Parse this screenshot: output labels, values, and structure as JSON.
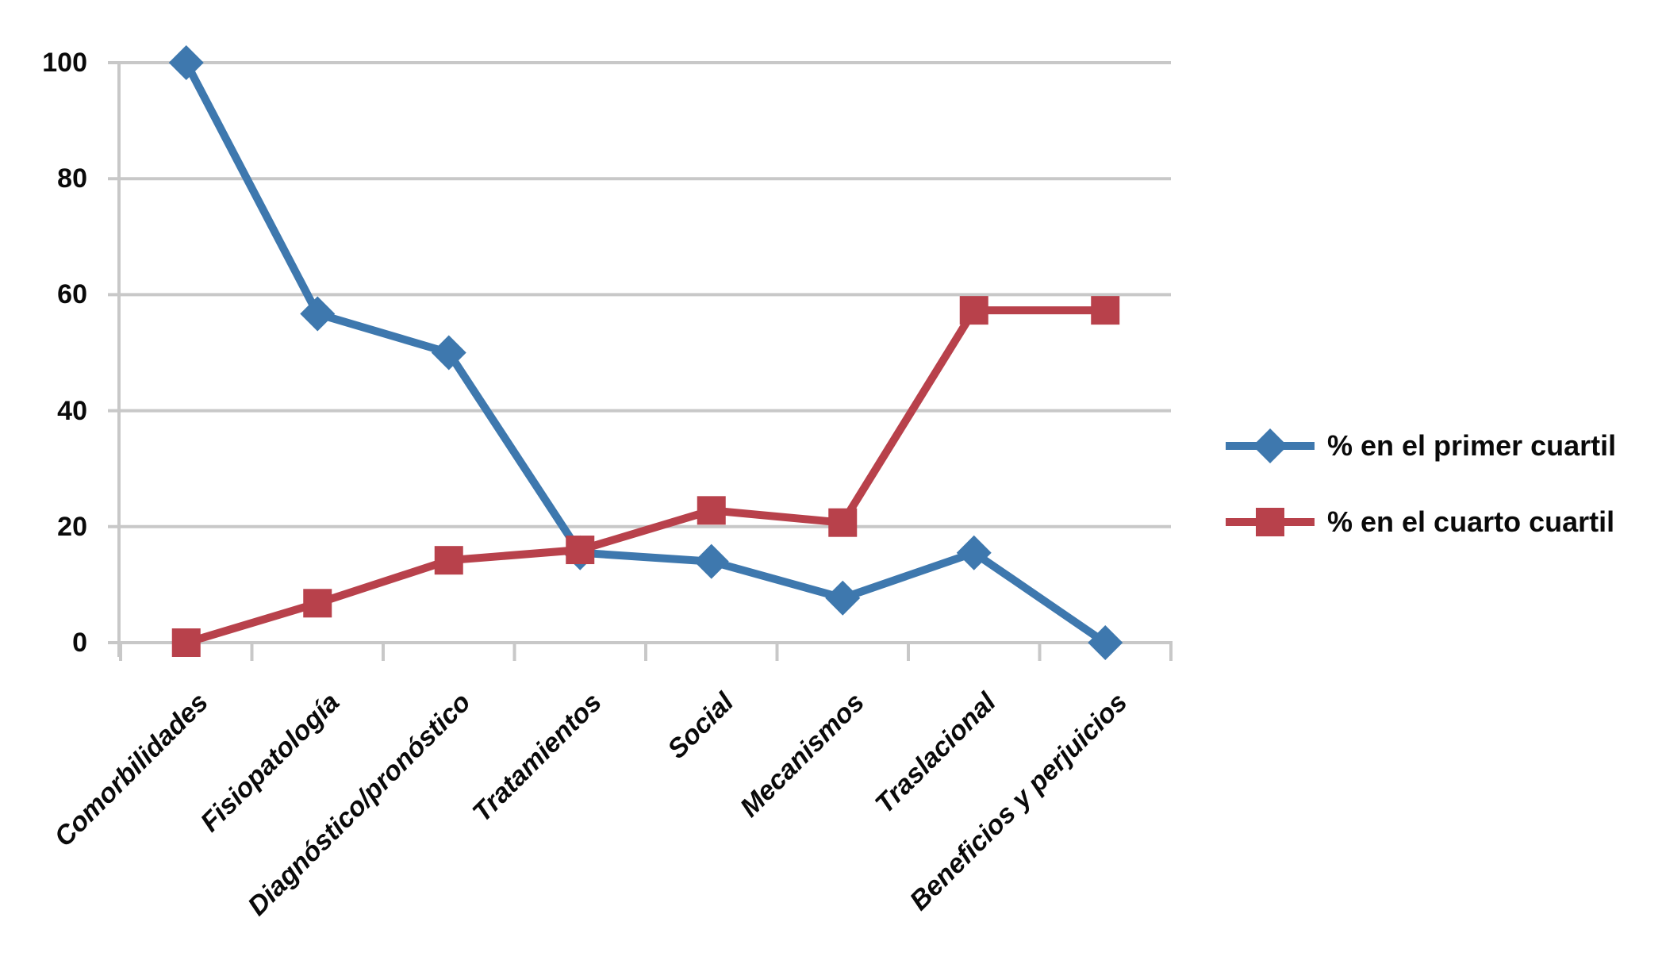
{
  "chart_data": {
    "type": "line",
    "title": "",
    "categories": [
      "Comorbilidades",
      "Fisiopatología",
      "Diagnóstico/pronóstico",
      "Tratamientos",
      "Social",
      "Mecanismos",
      "Traslacional",
      "Beneficios y perjuicios"
    ],
    "series": [
      {
        "name": "% en el primer cuartil",
        "marker": "diamond",
        "color": "#3E78AE",
        "values": [
          100,
          56.7,
          50,
          15.5,
          14,
          7.7,
          15.5,
          0
        ]
      },
      {
        "name": "% en el cuarto cuartil",
        "marker": "square",
        "color": "#B8414B",
        "values": [
          0,
          6.8,
          14.2,
          16,
          22.8,
          20.7,
          57.3,
          57.3
        ]
      }
    ],
    "xlabel": "",
    "ylabel": "",
    "y_axis": {
      "min": 0,
      "max": 100,
      "step": 20,
      "tick_labels": [
        "0",
        "20",
        "40",
        "60",
        "80",
        "100"
      ]
    },
    "grid": "horizontal",
    "grid_color": "#C8C8C8",
    "legend_position": "right"
  },
  "legend": {
    "items": [
      {
        "label": "% en el primer cuartil"
      },
      {
        "label": "% en el cuarto cuartil"
      }
    ]
  }
}
